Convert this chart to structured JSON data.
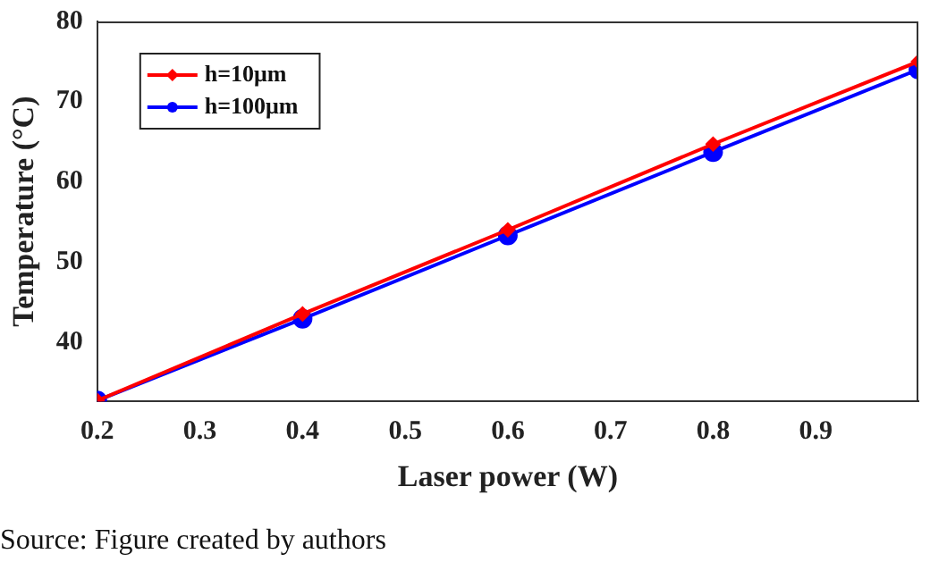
{
  "chart_data": {
    "type": "line",
    "xlabel": "Laser power (W)",
    "ylabel": "Temperature (°C)",
    "x": [
      0.2,
      0.4,
      0.6,
      0.8,
      1.0
    ],
    "series": [
      {
        "name": "h=10μm",
        "color": "#ff0000",
        "marker": "diamond",
        "values": [
          32.7,
          43.5,
          54.0,
          64.7,
          75.0
        ]
      },
      {
        "name": "h=100μm",
        "color": "#0000ff",
        "marker": "circle",
        "values": [
          32.7,
          42.9,
          53.3,
          63.7,
          74.0
        ]
      }
    ],
    "xlim": [
      0.2,
      1.0
    ],
    "xticks": [
      0.2,
      0.3,
      0.4,
      0.5,
      0.6,
      0.7,
      0.8,
      0.9
    ],
    "ylim": [
      32.6,
      80
    ],
    "yticks": [
      40,
      50,
      60,
      70,
      80
    ],
    "grid": false,
    "legend": "top left",
    "line_style": "solid",
    "annotations": [
      "Source: Figure created by authors"
    ]
  }
}
